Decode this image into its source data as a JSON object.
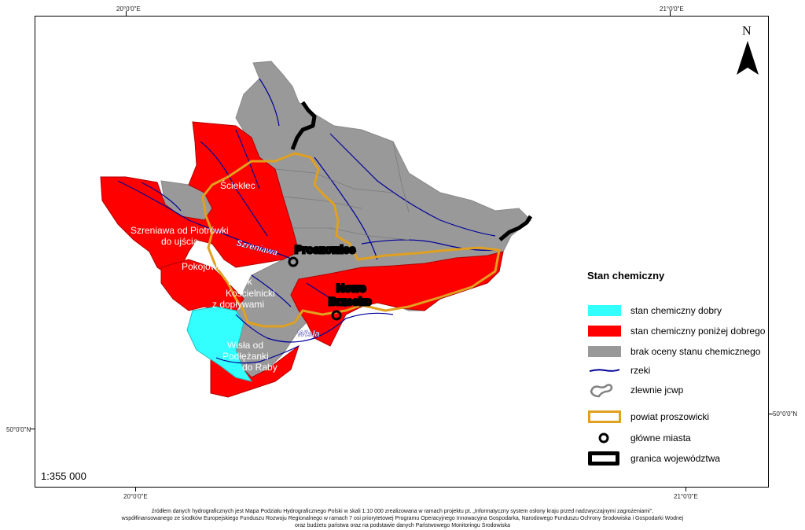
{
  "coordinates": {
    "top_left": "20°0'0\"E",
    "top_right": "21°0'0\"E",
    "bottom_left": "20°0'0\"E",
    "bottom_right": "21°0'0\"E",
    "left_lat": "50°0'0\"N",
    "right_lat": "50°0'0\"N"
  },
  "north_arrow": "N",
  "scale": "1:355 000",
  "regions": {
    "slomniczka": "Ściekłec",
    "szreniawa_line1": "Szreniawa od Piotrówki",
    "szreniawa_line2": "do ujścia",
    "pokojowka": "Pokojówka",
    "potok_line1": "Potok",
    "potok_line2": "Kościelnicki",
    "potok_line3": "z dopływami",
    "wisla_line1": "Wisła od",
    "wisla_line2": "Podłężanki",
    "wisla_line3": "do Raby"
  },
  "rivers": {
    "szreniawa": "Szreniawa",
    "wisla": "Wisła"
  },
  "cities": {
    "proszowice": "Proszowice",
    "nowe_line1": "Nowe",
    "nowe_line2": "Brzesko"
  },
  "legend": {
    "title": "Stan chemiczny",
    "items": [
      {
        "label": "stan chemiczny dobry",
        "color": "#33FFFF"
      },
      {
        "label": "stan chemiczny poniżej dobrego",
        "color": "#FF0000"
      },
      {
        "label": "brak oceny stanu chemicznego",
        "color": "#999999"
      },
      {
        "label": "rzeki",
        "color": "#000099"
      },
      {
        "label": "zlewnie jcwp",
        "color": "#808080"
      },
      {
        "label": "powiat proszowicki",
        "color": "#E0A020"
      },
      {
        "label": "główne miasta",
        "color": "#000000"
      },
      {
        "label": "granica województwa",
        "color": "#000000"
      }
    ]
  },
  "footer": {
    "line1": "źródłem danych hydrograficznych jest Mapa Podziału Hydrograficznego Polski w skali 1:10 000 zrealizowana w ramach projektu pt. „Informatyczny system osłony kraju przed nadzwyczajnymi zagrożeniami\",",
    "line2": "współfinansowanego ze środków Europejskiego Funduszu Rozwoju Regionalnego w ramach 7 osi priorytetowej Programu Operacyjnego Innowacyjna Gospodarka, Narodowego Funduszu Ochrony Środowiska i Gospodarki Wodnej",
    "line3": "oraz budżetu państwa oraz na podstawie danych Państwowego Monitoringu Środowiska"
  }
}
